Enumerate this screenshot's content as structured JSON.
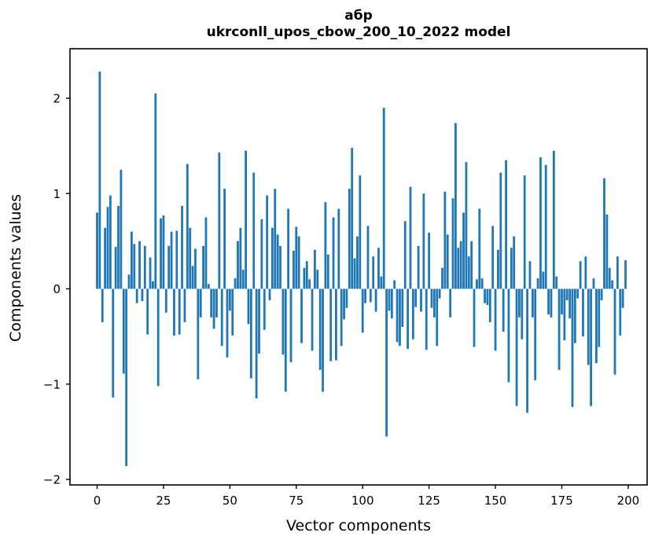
{
  "figure": {
    "title_line1": "абр",
    "title_line2": "ukrconll_upos_cbow_200_10_2022 model",
    "xlabel": "Vector components",
    "ylabel": "Components values"
  },
  "chart_data": {
    "type": "bar",
    "title": "абр",
    "subtitle": "ukrconll_upos_cbow_200_10_2022 model",
    "xlabel": "Vector components",
    "ylabel": "Components values",
    "x_is_component_index": true,
    "n_components": 200,
    "x_ticks": [
      0,
      25,
      50,
      75,
      100,
      125,
      150,
      175,
      200
    ],
    "y_ticks": [
      2,
      1,
      0,
      -1,
      -2
    ],
    "xlim": [
      -10.2,
      210.9
    ],
    "ylim": [
      -2.06,
      2.52
    ],
    "grid": false,
    "legend": "none",
    "bar_color": "#1f77b4",
    "axis_color": "#000000",
    "values": [
      0.8,
      2.28,
      -0.35,
      0.64,
      0.86,
      0.98,
      -1.14,
      0.44,
      0.87,
      1.25,
      -0.89,
      -1.86,
      0.15,
      0.6,
      0.47,
      -0.15,
      0.5,
      -0.13,
      0.45,
      -0.48,
      0.33,
      0.08,
      2.05,
      -1.02,
      0.74,
      0.77,
      -0.25,
      0.45,
      0.6,
      -0.49,
      0.61,
      -0.48,
      0.87,
      -0.35,
      1.31,
      0.64,
      0.24,
      0.42,
      -0.95,
      -0.3,
      0.45,
      0.75,
      0.05,
      -0.3,
      -0.42,
      -0.3,
      1.43,
      -0.6,
      1.05,
      -0.72,
      -0.23,
      -0.49,
      0.11,
      0.5,
      0.64,
      0.2,
      1.45,
      -0.37,
      -0.94,
      1.22,
      -1.15,
      -0.68,
      0.73,
      -0.43,
      0.98,
      -0.12,
      0.64,
      1.05,
      0.57,
      0.45,
      -0.69,
      -1.08,
      0.84,
      -0.77,
      0.4,
      0.65,
      0.55,
      -0.57,
      0.22,
      0.29,
      0.1,
      -0.65,
      0.41,
      0.2,
      -0.85,
      -1.08,
      0.91,
      0.36,
      -0.76,
      0.75,
      -0.75,
      0.84,
      -0.6,
      -0.32,
      -0.2,
      1.05,
      1.48,
      0.32,
      0.55,
      1.19,
      -0.46,
      -0.15,
      0.66,
      -0.14,
      0.34,
      -0.24,
      0.43,
      0.13,
      1.9,
      -1.55,
      -0.23,
      -0.31,
      0.09,
      -0.56,
      -0.6,
      -0.4,
      0.71,
      -0.63,
      1.07,
      -0.53,
      -0.19,
      0.45,
      -0.24,
      1.0,
      -0.64,
      0.59,
      -0.2,
      -0.3,
      -0.6,
      -0.1,
      0.22,
      1.02,
      0.57,
      -0.3,
      0.95,
      1.74,
      0.43,
      0.5,
      0.8,
      1.33,
      0.34,
      0.5,
      -0.61,
      0.1,
      0.84,
      0.11,
      -0.15,
      -0.17,
      -0.35,
      0.66,
      -0.65,
      0.41,
      1.22,
      -0.45,
      1.35,
      -0.98,
      0.43,
      0.55,
      -1.23,
      -0.3,
      -0.53,
      1.19,
      -1.3,
      0.29,
      -0.3,
      -0.96,
      0.11,
      1.38,
      0.18,
      1.3,
      -0.27,
      -0.3,
      1.45,
      0.13,
      -0.85,
      -0.27,
      -0.54,
      -0.12,
      -0.31,
      -1.24,
      -0.57,
      -0.1,
      0.29,
      -0.5,
      0.34,
      -0.8,
      -1.23,
      0.11,
      -0.78,
      -0.61,
      -0.12,
      1.16,
      0.78,
      0.22,
      0.09,
      -0.9,
      0.34,
      -0.49,
      -0.2,
      0.3
    ]
  }
}
